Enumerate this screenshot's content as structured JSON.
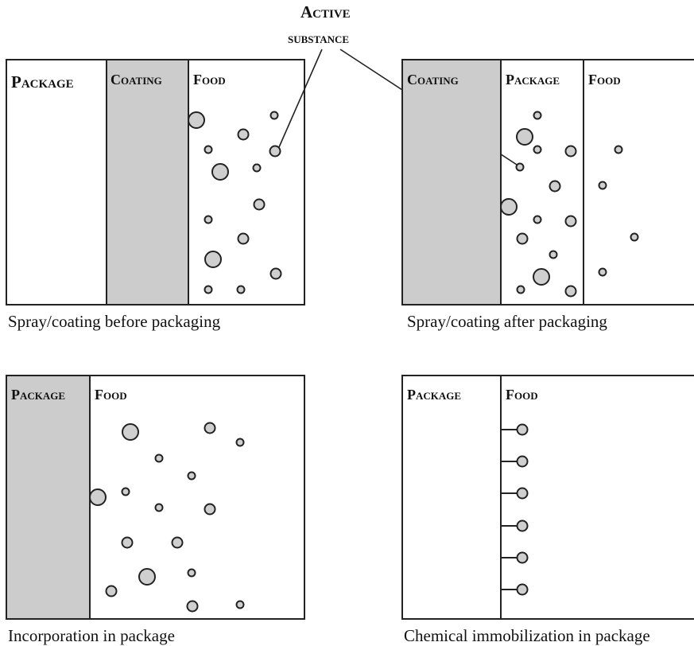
{
  "callout": {
    "line1": "Active",
    "line2": "substance"
  },
  "panel_tl": {
    "package": "Package",
    "coating": "Coating",
    "food": "Food",
    "caption": "Spray/coating before packaging"
  },
  "panel_tr": {
    "coating": "Coating",
    "package": "Package",
    "food": "Food",
    "caption": "Spray/coating after packaging"
  },
  "panel_bl": {
    "package": "Package",
    "food": "Food",
    "caption": "Incorporation in package"
  },
  "panel_br": {
    "package": "Package",
    "food": "Food",
    "caption": "Chemical immobilization in package"
  },
  "colors": {
    "shading": "#cccccc",
    "particle_fill": "#cfcfcf",
    "stroke": "#222222"
  }
}
